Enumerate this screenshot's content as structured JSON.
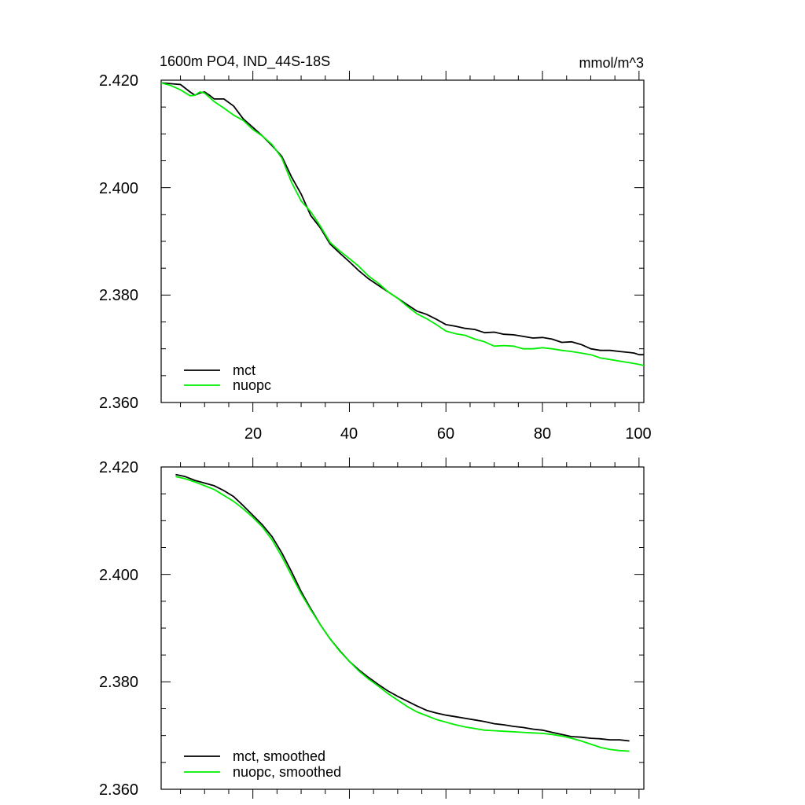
{
  "chart_data": [
    {
      "type": "line",
      "title": "1600m PO4, IND_44S-18S",
      "units": "mmol/m^3",
      "xlim": [
        1,
        101
      ],
      "ylim": [
        2.36,
        2.42
      ],
      "xticks": [
        20,
        40,
        60,
        80,
        100
      ],
      "xtick_labels": [
        "20",
        "40",
        "60",
        "80",
        "100"
      ],
      "yticks": [
        2.36,
        2.38,
        2.4,
        2.42
      ],
      "ytick_labels": [
        "2.360",
        "2.380",
        "2.400",
        "2.420"
      ],
      "legend_position": "bottom-left",
      "series": [
        {
          "name": "mct",
          "color": "#000000",
          "points": [
            [
              1,
              2.4195
            ],
            [
              5,
              2.4192
            ],
            [
              7,
              2.4178
            ],
            [
              8,
              2.4172
            ],
            [
              9,
              2.4176
            ],
            [
              10,
              2.4178
            ],
            [
              11,
              2.4172
            ],
            [
              12,
              2.4165
            ],
            [
              14,
              2.4165
            ],
            [
              16,
              2.4152
            ],
            [
              18,
              2.4128
            ],
            [
              20,
              2.4112
            ],
            [
              22,
              2.4096
            ],
            [
              24,
              2.4078
            ],
            [
              26,
              2.4058
            ],
            [
              28,
              2.402
            ],
            [
              30,
              2.3988
            ],
            [
              32,
              2.3948
            ],
            [
              34,
              2.3925
            ],
            [
              36,
              2.3895
            ],
            [
              38,
              2.3878
            ],
            [
              40,
              2.3862
            ],
            [
              42,
              2.3845
            ],
            [
              44,
              2.383
            ],
            [
              46,
              2.3818
            ],
            [
              48,
              2.3806
            ],
            [
              50,
              2.3794
            ],
            [
              52,
              2.3782
            ],
            [
              54,
              2.377
            ],
            [
              56,
              2.3764
            ],
            [
              58,
              2.3755
            ],
            [
              60,
              2.3745
            ],
            [
              62,
              2.3742
            ],
            [
              64,
              2.3738
            ],
            [
              66,
              2.3736
            ],
            [
              68,
              2.373
            ],
            [
              70,
              2.3731
            ],
            [
              72,
              2.3727
            ],
            [
              74,
              2.3726
            ],
            [
              76,
              2.3723
            ],
            [
              78,
              2.372
            ],
            [
              80,
              2.3721
            ],
            [
              82,
              2.3718
            ],
            [
              84,
              2.3712
            ],
            [
              86,
              2.3713
            ],
            [
              88,
              2.3708
            ],
            [
              90,
              2.37
            ],
            [
              92,
              2.3697
            ],
            [
              94,
              2.3697
            ],
            [
              96,
              2.3695
            ],
            [
              98,
              2.3693
            ],
            [
              99,
              2.3692
            ],
            [
              100,
              2.3689
            ],
            [
              101,
              2.3689
            ]
          ]
        },
        {
          "name": "nuopc",
          "color": "#00ee00",
          "points": [
            [
              1,
              2.4195
            ],
            [
              3,
              2.419
            ],
            [
              5,
              2.4182
            ],
            [
              7,
              2.4171
            ],
            [
              8,
              2.4172
            ],
            [
              9,
              2.4178
            ],
            [
              10,
              2.4176
            ],
            [
              12,
              2.416
            ],
            [
              14,
              2.4148
            ],
            [
              16,
              2.4135
            ],
            [
              18,
              2.4125
            ],
            [
              20,
              2.4108
            ],
            [
              22,
              2.4096
            ],
            [
              24,
              2.408
            ],
            [
              26,
              2.4055
            ],
            [
              28,
              2.401
            ],
            [
              30,
              2.3975
            ],
            [
              32,
              2.3955
            ],
            [
              34,
              2.3928
            ],
            [
              36,
              2.3898
            ],
            [
              38,
              2.3882
            ],
            [
              40,
              2.3868
            ],
            [
              42,
              2.3853
            ],
            [
              44,
              2.3835
            ],
            [
              46,
              2.3822
            ],
            [
              48,
              2.3806
            ],
            [
              50,
              2.3794
            ],
            [
              52,
              2.3779
            ],
            [
              54,
              2.3765
            ],
            [
              56,
              2.3756
            ],
            [
              58,
              2.3745
            ],
            [
              60,
              2.3733
            ],
            [
              62,
              2.3728
            ],
            [
              64,
              2.3725
            ],
            [
              66,
              2.3718
            ],
            [
              68,
              2.3713
            ],
            [
              70,
              2.3705
            ],
            [
              72,
              2.3706
            ],
            [
              74,
              2.3705
            ],
            [
              76,
              2.37
            ],
            [
              78,
              2.37
            ],
            [
              80,
              2.3702
            ],
            [
              82,
              2.37
            ],
            [
              84,
              2.3697
            ],
            [
              86,
              2.3695
            ],
            [
              88,
              2.3692
            ],
            [
              90,
              2.3689
            ],
            [
              92,
              2.3683
            ],
            [
              94,
              2.368
            ],
            [
              96,
              2.3677
            ],
            [
              98,
              2.3674
            ],
            [
              100,
              2.3671
            ],
            [
              101,
              2.3669
            ]
          ]
        }
      ]
    },
    {
      "type": "line",
      "xlim": [
        1,
        101
      ],
      "ylim": [
        2.36,
        2.42
      ],
      "xticks": [
        20,
        40,
        60,
        80,
        100
      ],
      "yticks": [
        2.36,
        2.38,
        2.4,
        2.42
      ],
      "ytick_labels": [
        "2.360",
        "2.380",
        "2.400",
        "2.420"
      ],
      "legend_position": "bottom-left",
      "series": [
        {
          "name": "mct, smoothed",
          "color": "#000000",
          "points": [
            [
              4,
              2.4186
            ],
            [
              6,
              2.4182
            ],
            [
              8,
              2.4175
            ],
            [
              10,
              2.417
            ],
            [
              12,
              2.4165
            ],
            [
              14,
              2.4156
            ],
            [
              16,
              2.4145
            ],
            [
              18,
              2.4128
            ],
            [
              20,
              2.411
            ],
            [
              22,
              2.4092
            ],
            [
              24,
              2.407
            ],
            [
              26,
              2.404
            ],
            [
              28,
              2.4005
            ],
            [
              30,
              2.3968
            ],
            [
              32,
              2.3936
            ],
            [
              34,
              2.3906
            ],
            [
              36,
              2.388
            ],
            [
              38,
              2.3858
            ],
            [
              40,
              2.3838
            ],
            [
              42,
              2.3822
            ],
            [
              44,
              2.3808
            ],
            [
              46,
              2.3795
            ],
            [
              48,
              2.3783
            ],
            [
              50,
              2.3773
            ],
            [
              52,
              2.3764
            ],
            [
              54,
              2.3755
            ],
            [
              56,
              2.3747
            ],
            [
              58,
              2.3742
            ],
            [
              60,
              2.3738
            ],
            [
              62,
              2.3735
            ],
            [
              64,
              2.3732
            ],
            [
              66,
              2.3729
            ],
            [
              68,
              2.3726
            ],
            [
              70,
              2.3722
            ],
            [
              72,
              2.372
            ],
            [
              74,
              2.3717
            ],
            [
              76,
              2.3715
            ],
            [
              78,
              2.3712
            ],
            [
              80,
              2.371
            ],
            [
              82,
              2.3706
            ],
            [
              84,
              2.3702
            ],
            [
              86,
              2.3698
            ],
            [
              88,
              2.3697
            ],
            [
              90,
              2.3695
            ],
            [
              92,
              2.3694
            ],
            [
              94,
              2.3692
            ],
            [
              96,
              2.3692
            ],
            [
              98,
              2.369
            ]
          ]
        },
        {
          "name": "nuopc, smoothed",
          "color": "#00ee00",
          "points": [
            [
              4,
              2.4182
            ],
            [
              6,
              2.4178
            ],
            [
              8,
              2.4172
            ],
            [
              10,
              2.4165
            ],
            [
              12,
              2.4158
            ],
            [
              14,
              2.4147
            ],
            [
              16,
              2.4136
            ],
            [
              18,
              2.4122
            ],
            [
              20,
              2.4106
            ],
            [
              22,
              2.4088
            ],
            [
              24,
              2.4064
            ],
            [
              26,
              2.4033
            ],
            [
              28,
              2.3998
            ],
            [
              30,
              2.3964
            ],
            [
              32,
              2.3934
            ],
            [
              34,
              2.3906
            ],
            [
              36,
              2.388
            ],
            [
              38,
              2.3857
            ],
            [
              40,
              2.3838
            ],
            [
              42,
              2.382
            ],
            [
              44,
              2.3805
            ],
            [
              46,
              2.3792
            ],
            [
              48,
              2.3778
            ],
            [
              50,
              2.3766
            ],
            [
              52,
              2.3754
            ],
            [
              54,
              2.3744
            ],
            [
              56,
              2.3737
            ],
            [
              58,
              2.373
            ],
            [
              60,
              2.3725
            ],
            [
              62,
              2.372
            ],
            [
              64,
              2.3716
            ],
            [
              66,
              2.3713
            ],
            [
              68,
              2.371
            ],
            [
              70,
              2.3709
            ],
            [
              72,
              2.3708
            ],
            [
              74,
              2.3707
            ],
            [
              76,
              2.3706
            ],
            [
              78,
              2.3705
            ],
            [
              80,
              2.3704
            ],
            [
              82,
              2.3702
            ],
            [
              84,
              2.3699
            ],
            [
              86,
              2.3695
            ],
            [
              88,
              2.369
            ],
            [
              90,
              2.3684
            ],
            [
              92,
              2.3678
            ],
            [
              94,
              2.3674
            ],
            [
              96,
              2.3672
            ],
            [
              98,
              2.3671
            ]
          ]
        }
      ]
    }
  ]
}
